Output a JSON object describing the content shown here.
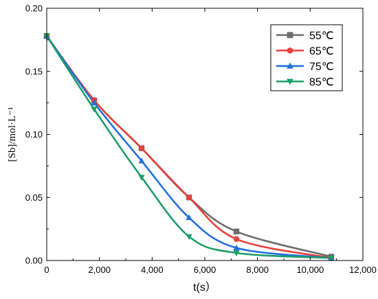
{
  "chart_data": {
    "type": "line",
    "xlabel": "t(s）",
    "ylabel": "[Sb]/mol·L⁻¹",
    "xlim": [
      0,
      12000
    ],
    "ylim": [
      0,
      0.2
    ],
    "xticks": [
      0,
      2000,
      4000,
      6000,
      8000,
      10000,
      12000
    ],
    "xtick_labels": [
      "0",
      "2,000",
      "4,000",
      "6,000",
      "8,000",
      "10,000",
      "12,000"
    ],
    "yticks": [
      0,
      0.05,
      0.1,
      0.15,
      0.2
    ],
    "ytick_labels": [
      "0.00",
      "0.05",
      "0.10",
      "0.15",
      "0.20"
    ],
    "grid": false,
    "legend_position": "top-right",
    "x": [
      0,
      1800,
      3600,
      5400,
      7200,
      10800
    ],
    "series": [
      {
        "name": "55℃",
        "color": "#6d6d6d",
        "marker": "square",
        "values": [
          0.178,
          0.127,
          0.089,
          0.05,
          0.023,
          0.003
        ]
      },
      {
        "name": "65℃",
        "color": "#e8403a",
        "marker": "circle",
        "values": [
          0.178,
          0.127,
          0.089,
          0.05,
          0.017,
          0.002
        ]
      },
      {
        "name": "75℃",
        "color": "#1f6fdc",
        "marker": "triangle-up",
        "values": [
          0.178,
          0.125,
          0.079,
          0.034,
          0.01,
          0.002
        ]
      },
      {
        "name": "85℃",
        "color": "#1a9e66",
        "marker": "triangle-down",
        "values": [
          0.178,
          0.12,
          0.066,
          0.019,
          0.006,
          0.002
        ]
      }
    ]
  }
}
